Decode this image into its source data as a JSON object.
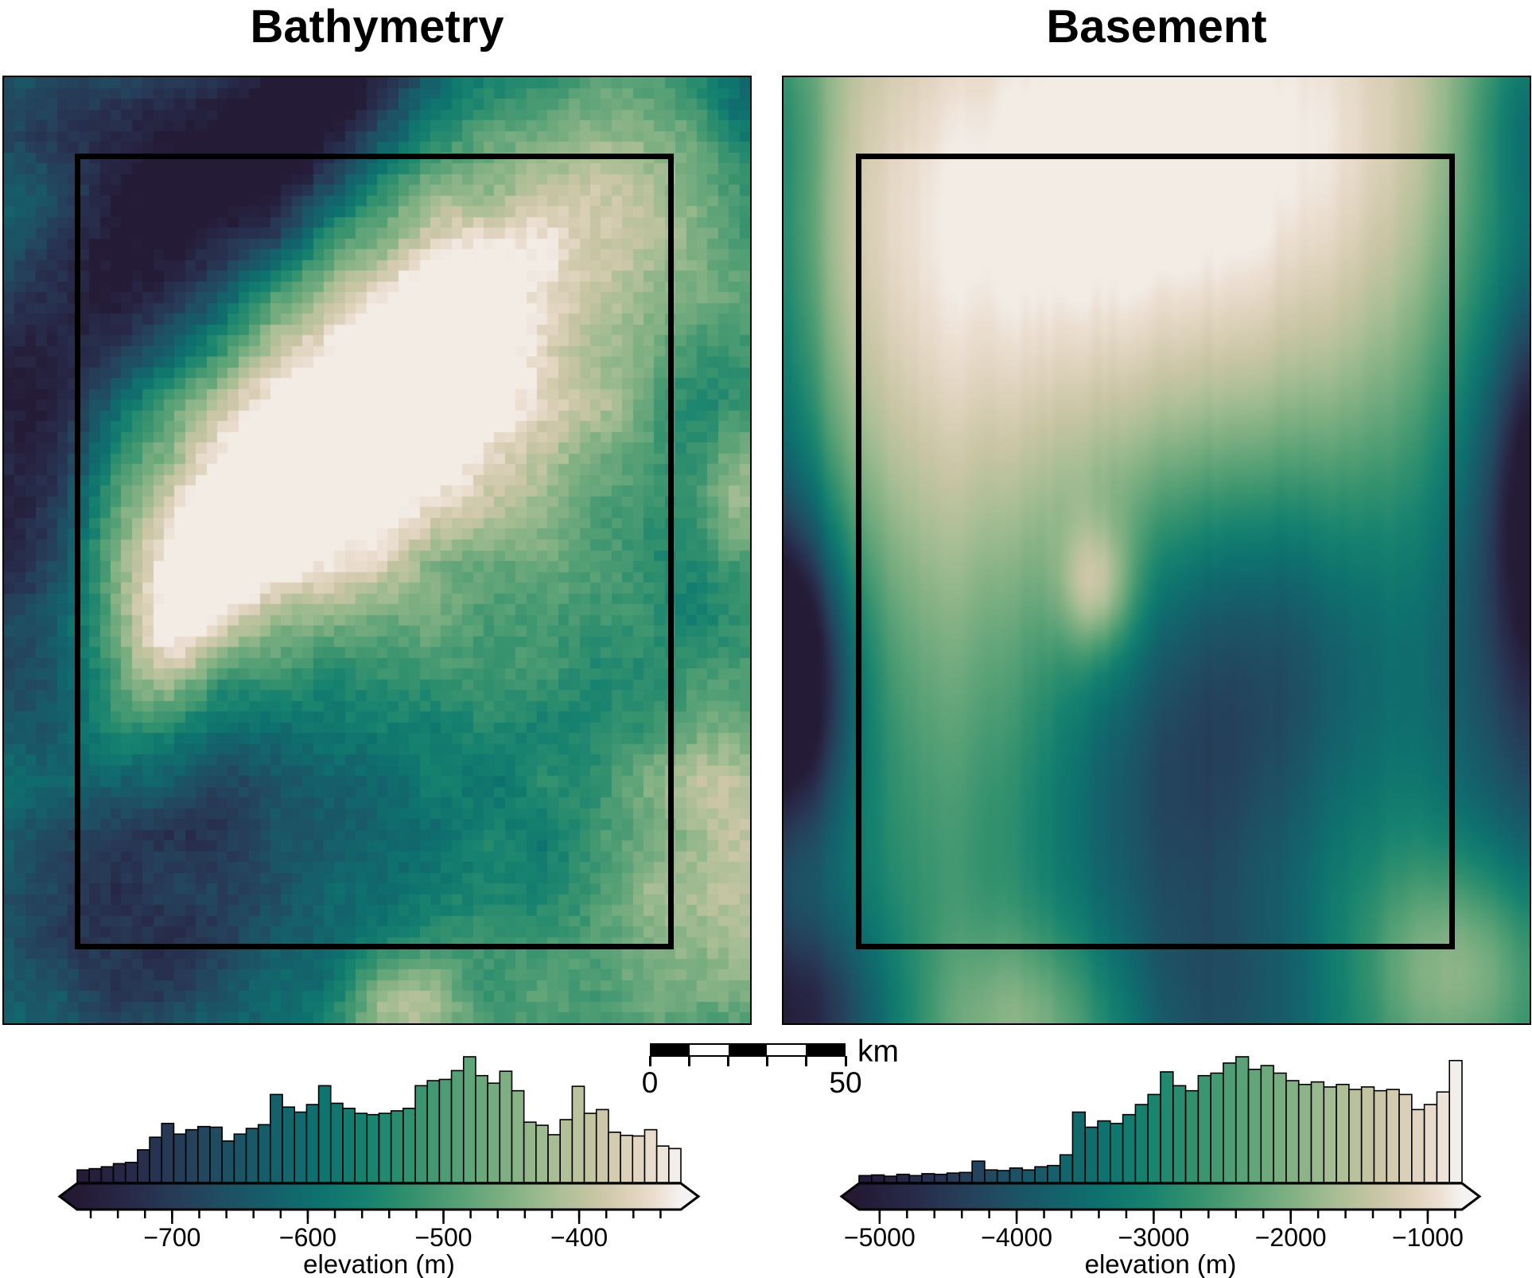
{
  "figure": {
    "panels": [
      {
        "title": "Bathymetry"
      },
      {
        "title": "Basement"
      }
    ]
  },
  "scalebar": {
    "start_label": "0",
    "end_label": "50",
    "unit": "km",
    "length_km": 50,
    "segments": [
      "#000000",
      "#ffffff",
      "#000000",
      "#ffffff",
      "#000000"
    ]
  },
  "colormap_stops": [
    [
      0.0,
      "#241a34"
    ],
    [
      0.08,
      "#272847"
    ],
    [
      0.16,
      "#273b57"
    ],
    [
      0.24,
      "#1f4e62"
    ],
    [
      0.32,
      "#155f6a"
    ],
    [
      0.4,
      "#0e716e"
    ],
    [
      0.48,
      "#17826f"
    ],
    [
      0.56,
      "#35926e"
    ],
    [
      0.64,
      "#5ba277"
    ],
    [
      0.72,
      "#83b184"
    ],
    [
      0.8,
      "#adbf97"
    ],
    [
      0.86,
      "#c9c5a5"
    ],
    [
      0.92,
      "#dfd3bd"
    ],
    [
      0.96,
      "#ecdfd2"
    ],
    [
      1.0,
      "#f5f3f1"
    ]
  ],
  "chart_data": [
    {
      "type": "heatmap",
      "title": "Bathymetry",
      "units": "m",
      "vmin": -770,
      "vmax": -325,
      "inset_box": true,
      "grid": {
        "cols": 70,
        "rows": 88,
        "pixelated": true
      },
      "field_model": {
        "base": 0.45,
        "features": [
          [
            0.17,
            0.2,
            0.3,
            0.095,
            -0.42,
            -48
          ],
          [
            0.03,
            0.5,
            0.07,
            0.16,
            -0.25,
            0
          ],
          [
            0.06,
            0.03,
            0.13,
            0.07,
            -0.2,
            0
          ],
          [
            0.44,
            0.03,
            0.17,
            0.065,
            -0.36,
            -45
          ],
          [
            0.37,
            0.43,
            0.21,
            0.13,
            0.58,
            -30
          ],
          [
            0.6,
            0.26,
            0.16,
            0.1,
            0.42,
            -35
          ],
          [
            0.78,
            0.38,
            0.18,
            0.16,
            0.2,
            0
          ],
          [
            0.9,
            0.12,
            0.1,
            0.11,
            0.28,
            0
          ],
          [
            1.0,
            0.02,
            0.06,
            0.05,
            -0.22,
            0
          ],
          [
            0.92,
            0.45,
            0.05,
            0.2,
            -0.15,
            0
          ],
          [
            0.99,
            0.44,
            0.05,
            0.06,
            0.3,
            0
          ],
          [
            0.27,
            0.8,
            0.17,
            0.15,
            -0.24,
            0
          ],
          [
            0.13,
            0.93,
            0.1,
            0.08,
            -0.16,
            0
          ],
          [
            0.97,
            0.8,
            0.1,
            0.13,
            0.42,
            0
          ],
          [
            0.7,
            0.97,
            0.2,
            0.1,
            0.16,
            0
          ],
          [
            0.53,
            0.99,
            0.06,
            0.05,
            0.28,
            0
          ],
          [
            0.24,
            0.57,
            0.1,
            0.05,
            0.35,
            -50
          ],
          [
            0.62,
            0.6,
            0.18,
            0.12,
            0.08,
            0
          ],
          [
            0.45,
            0.75,
            0.3,
            0.2,
            -0.06,
            0
          ]
        ],
        "noise": {
          "seed": 11,
          "fine_amp": 0.035,
          "medium_amp": 0.065,
          "medium_cells": 5,
          "column_amp": 0
        }
      }
    },
    {
      "type": "heatmap",
      "title": "Basement",
      "units": "m",
      "vmin": -5150,
      "vmax": -750,
      "inset_box": true,
      "grid": {
        "cols": 94,
        "rows": 118,
        "pixelated": false
      },
      "field_model": {
        "base": 0.55,
        "features": [
          [
            0.55,
            0.03,
            0.46,
            0.23,
            0.42,
            0
          ],
          [
            0.38,
            0.3,
            0.3,
            0.2,
            0.16,
            0
          ],
          [
            0.15,
            0.52,
            0.13,
            0.26,
            0.16,
            0
          ],
          [
            0.63,
            0.6,
            0.145,
            0.14,
            -0.32,
            0
          ],
          [
            0.52,
            0.78,
            0.13,
            0.12,
            -0.22,
            0
          ],
          [
            0.58,
            1.0,
            0.13,
            0.11,
            -0.28,
            0
          ],
          [
            0.0,
            0.63,
            0.055,
            0.11,
            -0.6,
            0
          ],
          [
            0.02,
            0.66,
            0.1,
            0.22,
            -0.28,
            0
          ],
          [
            1.02,
            0.45,
            0.1,
            0.42,
            -0.42,
            0
          ],
          [
            1.02,
            0.45,
            0.045,
            0.13,
            -0.38,
            0
          ],
          [
            0.0,
            1.0,
            0.1,
            0.08,
            -0.45,
            0
          ],
          [
            0.92,
            0.94,
            0.095,
            0.085,
            0.32,
            0
          ],
          [
            0.42,
            0.54,
            0.035,
            0.05,
            0.3,
            0
          ],
          [
            0.0,
            0.25,
            0.045,
            0.22,
            -0.25,
            0
          ],
          [
            1.0,
            0.04,
            0.055,
            0.08,
            -0.18,
            0
          ],
          [
            0.33,
            1.0,
            0.1,
            0.07,
            0.22,
            0
          ],
          [
            0.0,
            0.04,
            0.05,
            0.08,
            -0.1,
            0
          ]
        ],
        "noise": {
          "seed": 3,
          "fine_amp": 0,
          "medium_amp": 0,
          "medium_cells": 8,
          "column_amp": 0.012
        }
      }
    },
    {
      "type": "histogram",
      "panel": "Bathymetry",
      "xlabel": "elevation (m)",
      "bin_start": -770,
      "bin_end": -325,
      "n_bins": 50,
      "values_relative": [
        0.1,
        0.11,
        0.125,
        0.15,
        0.16,
        0.26,
        0.36,
        0.47,
        0.385,
        0.42,
        0.445,
        0.44,
        0.33,
        0.385,
        0.43,
        0.46,
        0.7,
        0.6,
        0.56,
        0.62,
        0.77,
        0.63,
        0.59,
        0.55,
        0.54,
        0.55,
        0.57,
        0.59,
        0.77,
        0.81,
        0.82,
        0.89,
        1.0,
        0.85,
        0.79,
        0.885,
        0.73,
        0.48,
        0.455,
        0.38,
        0.5,
        0.765,
        0.55,
        0.58,
        0.4,
        0.375,
        0.37,
        0.42,
        0.29,
        0.27
      ],
      "x_ticks": [
        {
          "value": -700,
          "label": "−700"
        },
        {
          "value": -600,
          "label": "−600"
        },
        {
          "value": -500,
          "label": "−500"
        },
        {
          "value": -400,
          "label": "−400"
        }
      ],
      "minor_tick_step": 20,
      "colorbar_extend": "both"
    },
    {
      "type": "histogram",
      "panel": "Basement",
      "xlabel": "elevation (m)",
      "bin_start": -5150,
      "bin_end": -750,
      "n_bins": 48,
      "values_relative": [
        0.055,
        0.06,
        0.05,
        0.065,
        0.055,
        0.07,
        0.065,
        0.075,
        0.08,
        0.17,
        0.1,
        0.095,
        0.115,
        0.1,
        0.125,
        0.135,
        0.22,
        0.56,
        0.44,
        0.49,
        0.47,
        0.54,
        0.62,
        0.7,
        0.88,
        0.77,
        0.73,
        0.85,
        0.87,
        0.95,
        1.0,
        0.9,
        0.93,
        0.87,
        0.81,
        0.78,
        0.8,
        0.76,
        0.78,
        0.74,
        0.76,
        0.73,
        0.74,
        0.7,
        0.58,
        0.62,
        0.72,
        0.97
      ],
      "x_ticks": [
        {
          "value": -5000,
          "label": "−5000"
        },
        {
          "value": -4000,
          "label": "−4000"
        },
        {
          "value": -3000,
          "label": "−3000"
        },
        {
          "value": -2000,
          "label": "−2000"
        },
        {
          "value": -1000,
          "label": "−1000"
        }
      ],
      "minor_tick_step": 200,
      "colorbar_extend": "both"
    }
  ]
}
